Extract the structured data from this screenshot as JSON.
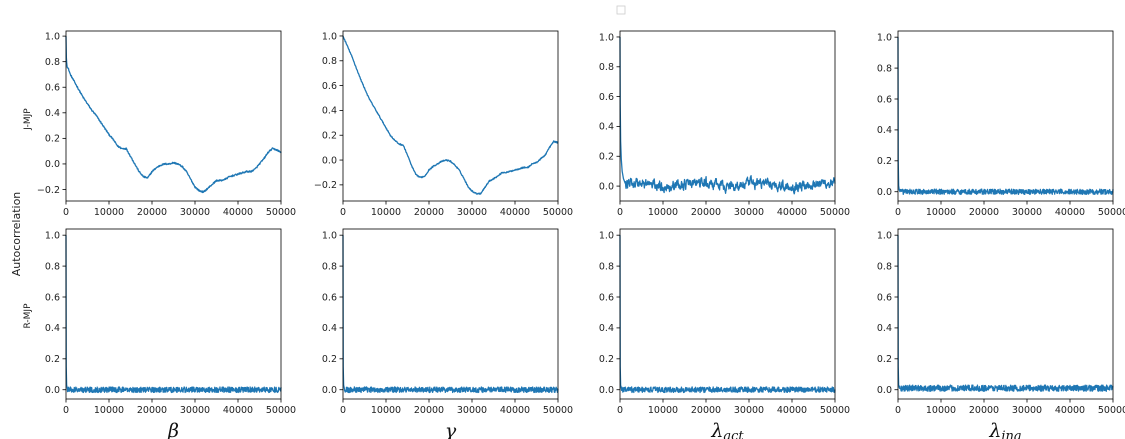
{
  "figure": {
    "ylabel": "Autocorrelation",
    "row_labels": [
      "J-MJP",
      "R-MJP"
    ],
    "column_labels": [
      {
        "symbol": "β",
        "sub": ""
      },
      {
        "symbol": "γ",
        "sub": ""
      },
      {
        "symbol": "λ",
        "sub": "act"
      },
      {
        "symbol": "λ",
        "sub": "ina"
      }
    ]
  },
  "chart_data": [
    {
      "type": "line",
      "row": "J-MJP",
      "col": "β",
      "color": "#1f77b4",
      "xlim": [
        0,
        50000
      ],
      "ylim": [
        -0.29,
        1.04
      ],
      "xticks": [
        0,
        10000,
        20000,
        30000,
        40000,
        50000
      ],
      "yticks": [
        -0.2,
        0.0,
        0.2,
        0.4,
        0.6,
        0.8,
        1.0
      ],
      "x": [
        0,
        100,
        300,
        600,
        1000,
        2000,
        3000,
        4000,
        5000,
        6000,
        7000,
        8000,
        9000,
        10000,
        11000,
        12000,
        13000,
        14000,
        15000,
        16000,
        17000,
        18000,
        19000,
        20000,
        21000,
        22000,
        23000,
        24000,
        25000,
        26000,
        27000,
        28000,
        29000,
        30000,
        31000,
        32000,
        33000,
        34000,
        35000,
        36000,
        37000,
        38000,
        39000,
        40000,
        41000,
        42000,
        43000,
        44000,
        45000,
        46000,
        47000,
        48000,
        49000,
        50000
      ],
      "y": [
        1.0,
        0.8,
        0.76,
        0.74,
        0.7,
        0.64,
        0.58,
        0.52,
        0.47,
        0.42,
        0.38,
        0.33,
        0.28,
        0.23,
        0.19,
        0.14,
        0.12,
        0.12,
        0.06,
        0.0,
        -0.06,
        -0.1,
        -0.11,
        -0.06,
        -0.03,
        -0.01,
        0.0,
        0.0,
        0.01,
        0.0,
        -0.02,
        -0.06,
        -0.12,
        -0.18,
        -0.21,
        -0.22,
        -0.19,
        -0.16,
        -0.13,
        -0.13,
        -0.12,
        -0.1,
        -0.09,
        -0.08,
        -0.07,
        -0.06,
        -0.06,
        -0.04,
        0.0,
        0.04,
        0.09,
        0.12,
        0.11,
        0.09
      ],
      "noise": 0.006
    },
    {
      "type": "line",
      "row": "J-MJP",
      "col": "γ",
      "color": "#1f77b4",
      "xlim": [
        0,
        50000
      ],
      "ylim": [
        -0.33,
        1.04
      ],
      "xticks": [
        0,
        10000,
        20000,
        30000,
        40000,
        50000
      ],
      "yticks": [
        -0.2,
        0.0,
        0.2,
        0.4,
        0.6,
        0.8,
        1.0
      ],
      "x": [
        0,
        100,
        1000,
        2000,
        3000,
        4000,
        5000,
        6000,
        7000,
        8000,
        9000,
        10000,
        11000,
        12000,
        13000,
        14000,
        15000,
        16000,
        17000,
        18000,
        19000,
        20000,
        21000,
        22000,
        23000,
        24000,
        25000,
        26000,
        27000,
        28000,
        29000,
        30000,
        31000,
        32000,
        33000,
        34000,
        35000,
        36000,
        37000,
        38000,
        39000,
        40000,
        41000,
        42000,
        43000,
        44000,
        45000,
        46000,
        47000,
        48000,
        49000,
        50000
      ],
      "y": [
        1.0,
        0.99,
        0.92,
        0.84,
        0.75,
        0.66,
        0.58,
        0.5,
        0.44,
        0.38,
        0.32,
        0.26,
        0.2,
        0.16,
        0.13,
        0.12,
        0.04,
        -0.05,
        -0.12,
        -0.14,
        -0.13,
        -0.08,
        -0.05,
        -0.03,
        -0.01,
        0.0,
        -0.01,
        -0.04,
        -0.08,
        -0.14,
        -0.21,
        -0.25,
        -0.27,
        -0.27,
        -0.22,
        -0.17,
        -0.15,
        -0.13,
        -0.1,
        -0.1,
        -0.09,
        -0.08,
        -0.07,
        -0.06,
        -0.06,
        -0.03,
        -0.02,
        0.01,
        0.04,
        0.1,
        0.15,
        0.14
      ],
      "noise": 0.005
    },
    {
      "type": "line",
      "row": "J-MJP",
      "col": "λact",
      "color": "#1f77b4",
      "xlim": [
        0,
        50000
      ],
      "ylim": [
        -0.1,
        1.04
      ],
      "xticks": [
        0,
        10000,
        20000,
        30000,
        40000,
        50000
      ],
      "yticks": [
        0.0,
        0.2,
        0.4,
        0.6,
        0.8,
        1.0
      ],
      "x": [
        0,
        50,
        150,
        300,
        500,
        800,
        1200
      ],
      "y": [
        1.0,
        0.55,
        0.3,
        0.18,
        0.1,
        0.05,
        0.02
      ],
      "tail_mean": 0.01,
      "tail_amp": 0.045,
      "noise_shape": "smooth"
    },
    {
      "type": "line",
      "row": "J-MJP",
      "col": "λina",
      "color": "#1f77b4",
      "xlim": [
        0,
        50000
      ],
      "ylim": [
        -0.06,
        1.04
      ],
      "xticks": [
        0,
        10000,
        20000,
        30000,
        40000,
        50000
      ],
      "yticks": [
        0.0,
        0.2,
        0.4,
        0.6,
        0.8,
        1.0
      ],
      "x": [
        0,
        50,
        150,
        300
      ],
      "y": [
        1.0,
        0.2,
        0.04,
        0.01
      ],
      "tail_mean": 0.0,
      "tail_amp": 0.017,
      "noise_shape": "rough"
    },
    {
      "type": "line",
      "row": "R-MJP",
      "col": "β",
      "color": "#1f77b4",
      "xlim": [
        0,
        50000
      ],
      "ylim": [
        -0.06,
        1.04
      ],
      "xticks": [
        0,
        10000,
        20000,
        30000,
        40000,
        50000
      ],
      "yticks": [
        0.0,
        0.2,
        0.4,
        0.6,
        0.8,
        1.0
      ],
      "x": [
        0,
        50,
        150,
        300
      ],
      "y": [
        1.0,
        0.15,
        0.03,
        0.01
      ],
      "tail_mean": 0.0,
      "tail_amp": 0.018,
      "noise_shape": "rough"
    },
    {
      "type": "line",
      "row": "R-MJP",
      "col": "γ",
      "color": "#1f77b4",
      "xlim": [
        0,
        50000
      ],
      "ylim": [
        -0.06,
        1.04
      ],
      "xticks": [
        0,
        10000,
        20000,
        30000,
        40000,
        50000
      ],
      "yticks": [
        0.0,
        0.2,
        0.4,
        0.6,
        0.8,
        1.0
      ],
      "x": [
        0,
        50,
        150,
        300
      ],
      "y": [
        1.0,
        0.15,
        0.03,
        0.01
      ],
      "tail_mean": 0.0,
      "tail_amp": 0.018,
      "noise_shape": "rough"
    },
    {
      "type": "line",
      "row": "R-MJP",
      "col": "λact",
      "color": "#1f77b4",
      "xlim": [
        0,
        50000
      ],
      "ylim": [
        -0.06,
        1.04
      ],
      "xticks": [
        0,
        10000,
        20000,
        30000,
        40000,
        50000
      ],
      "yticks": [
        0.0,
        0.2,
        0.4,
        0.6,
        0.8,
        1.0
      ],
      "x": [
        0,
        50,
        150,
        300
      ],
      "y": [
        1.0,
        0.15,
        0.03,
        0.01
      ],
      "tail_mean": 0.0,
      "tail_amp": 0.018,
      "noise_shape": "rough"
    },
    {
      "type": "line",
      "row": "R-MJP",
      "col": "λina",
      "color": "#1f77b4",
      "xlim": [
        0,
        50000
      ],
      "ylim": [
        -0.06,
        1.04
      ],
      "xticks": [
        0,
        10000,
        20000,
        30000,
        40000,
        50000
      ],
      "yticks": [
        0.0,
        0.2,
        0.4,
        0.6,
        0.8,
        1.0
      ],
      "x": [
        0,
        50,
        150,
        300
      ],
      "y": [
        1.0,
        0.15,
        0.03,
        0.015
      ],
      "tail_mean": 0.01,
      "tail_amp": 0.02,
      "noise_shape": "rough"
    }
  ]
}
